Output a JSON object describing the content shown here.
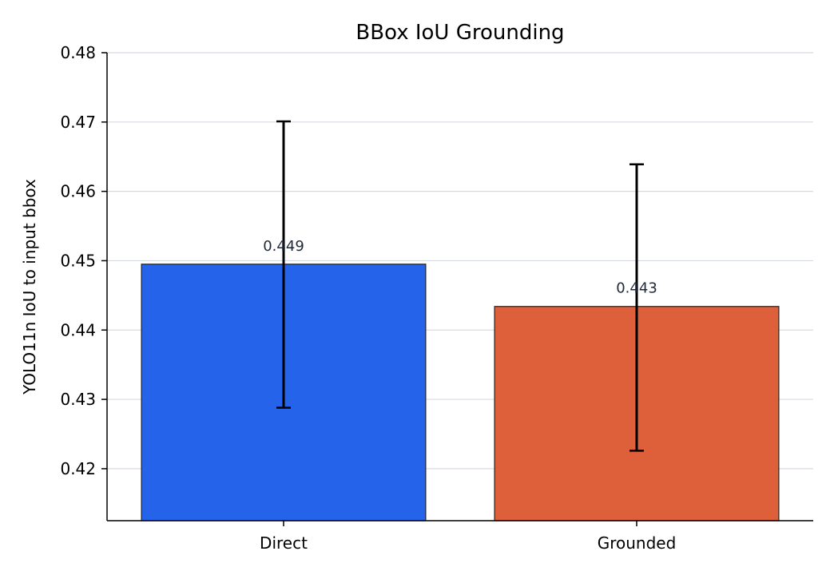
{
  "chart_data": {
    "type": "bar",
    "title": "BBox IoU Grounding",
    "xlabel": "",
    "ylabel": "YOLO11n IoU to input bbox",
    "categories": [
      "Direct",
      "Grounded"
    ],
    "values": [
      0.4495,
      0.4434
    ],
    "value_labels": [
      "0.449",
      "0.443"
    ],
    "error_low": [
      0.4288,
      0.4226
    ],
    "error_high": [
      0.4701,
      0.4639
    ],
    "bar_colors": [
      "#2563eb",
      "#dd603b"
    ],
    "ylim": [
      0.4125,
      0.48
    ],
    "yticks": [
      0.42,
      0.43,
      0.44,
      0.45,
      0.46,
      0.47,
      0.48
    ],
    "ytick_labels": [
      "0.42",
      "0.43",
      "0.44",
      "0.45",
      "0.46",
      "0.47",
      "0.48"
    ],
    "grid": "horizontal",
    "legend": "none"
  }
}
